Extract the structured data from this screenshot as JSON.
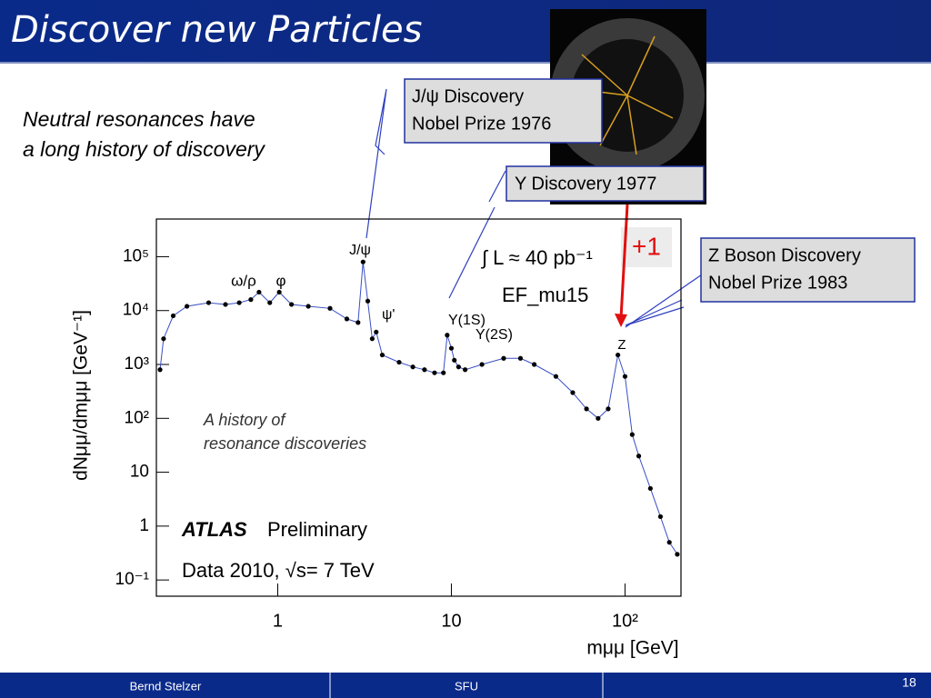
{
  "slide": {
    "title": "Discover new Particles",
    "intro": [
      "Neutral resonances have",
      "a long history of discovery"
    ],
    "callouts": [
      [
        "J/ψ Discovery",
        "Nobel Prize 1976"
      ],
      [
        "Υ Discovery 1977"
      ],
      [
        "Z Boson Discovery",
        "Nobel Prize 1983"
      ]
    ],
    "plus": "+1"
  },
  "footer": {
    "author": "Bernd Stelzer",
    "institute": "SFU",
    "page": "18"
  },
  "chart_data": {
    "type": "scatter",
    "xlabel": "mμμ [GeV]",
    "ylabel": "dNμμ/dmμμ [GeV⁻¹]",
    "annotations": [
      "ω/ρ",
      "φ",
      "J/ψ",
      "ψ'",
      "Υ(1S)",
      "Υ(2S)",
      "Z",
      "∫ L ≈ 40 pb⁻¹",
      "EF_mu15",
      "A history of",
      "resonance discoveries",
      "ATLAS",
      "Preliminary",
      "Data 2010, √s= 7 TeV"
    ],
    "log_x": true,
    "log_y": true,
    "xlim": [
      0.2,
      210
    ],
    "ylim": [
      0.05,
      500000
    ],
    "xticks": [
      1,
      10,
      {
        "value": 100,
        "label": "10²"
      }
    ],
    "yticks": [
      {
        "value": 0.1,
        "label": "10⁻¹"
      },
      1,
      10,
      {
        "value": 100,
        "label": "10²"
      },
      {
        "value": 1000,
        "label": "10³"
      },
      {
        "value": 10000,
        "label": "10⁴"
      },
      {
        "value": 100000,
        "label": "10⁵"
      }
    ],
    "color": "#000000",
    "line_color": "#3a4fc4",
    "x": [
      0.21,
      0.22,
      0.25,
      0.3,
      0.4,
      0.5,
      0.6,
      0.7,
      0.78,
      0.9,
      1.02,
      1.2,
      1.5,
      2,
      2.5,
      2.9,
      3.1,
      3.3,
      3.5,
      3.69,
      4,
      5,
      6,
      7,
      8,
      9,
      9.46,
      10,
      10.4,
      11,
      12,
      15,
      20,
      25,
      30,
      40,
      50,
      60,
      70,
      80,
      91,
      100,
      110,
      120,
      140,
      160,
      180,
      200
    ],
    "values": [
      800,
      3000,
      8000,
      12000,
      14000,
      13000,
      14000,
      16000,
      22000,
      14000,
      22000,
      13000,
      12000,
      11000,
      7000,
      6000,
      80000,
      15000,
      3000,
      4000,
      1500,
      1100,
      900,
      800,
      700,
      700,
      3500,
      2000,
      1200,
      900,
      800,
      1000,
      1300,
      1300,
      1000,
      600,
      300,
      150,
      100,
      150,
      1500,
      600,
      50,
      20,
      5,
      1.5,
      0.5,
      0.3
    ]
  }
}
